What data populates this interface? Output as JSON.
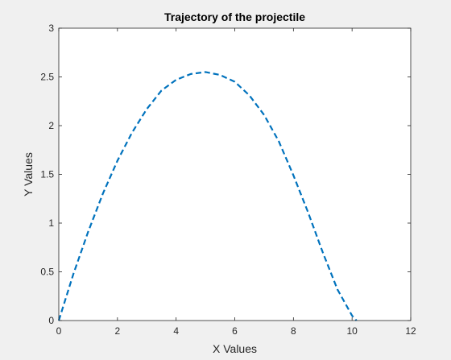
{
  "chart_data": {
    "type": "line",
    "title": "Trajectory of the projectile",
    "xlabel": "X Values",
    "ylabel": "Y Values",
    "xlim": [
      0,
      12
    ],
    "ylim": [
      0,
      3
    ],
    "xticks": [
      0,
      2,
      4,
      6,
      8,
      10,
      12
    ],
    "yticks": [
      0,
      0.5,
      1,
      1.5,
      2,
      2.5,
      3
    ],
    "xtick_labels": [
      "0",
      "2",
      "4",
      "6",
      "8",
      "10",
      "12"
    ],
    "ytick_labels": [
      "0",
      "0.5",
      "1",
      "1.5",
      "2",
      "2.5",
      "3"
    ],
    "grid": false,
    "series": [
      {
        "line_style": "dashed",
        "color": "#0072bd",
        "x": [
          0,
          0.5,
          1,
          1.5,
          2,
          2.5,
          3,
          3.5,
          4,
          4.5,
          5,
          5.5,
          6,
          6.5,
          7,
          7.5,
          8,
          8.5,
          9,
          9.5,
          10,
          10.15
        ],
        "y": [
          0,
          0.48,
          0.91,
          1.3,
          1.64,
          1.93,
          2.17,
          2.36,
          2.47,
          2.53,
          2.55,
          2.52,
          2.45,
          2.31,
          2.11,
          1.84,
          1.49,
          1.11,
          0.7,
          0.32,
          0.05,
          0
        ]
      }
    ]
  },
  "colors": {
    "figure_background": "#f0f0f0",
    "axes_background": "#ffffff",
    "axis_color": "#262626"
  }
}
